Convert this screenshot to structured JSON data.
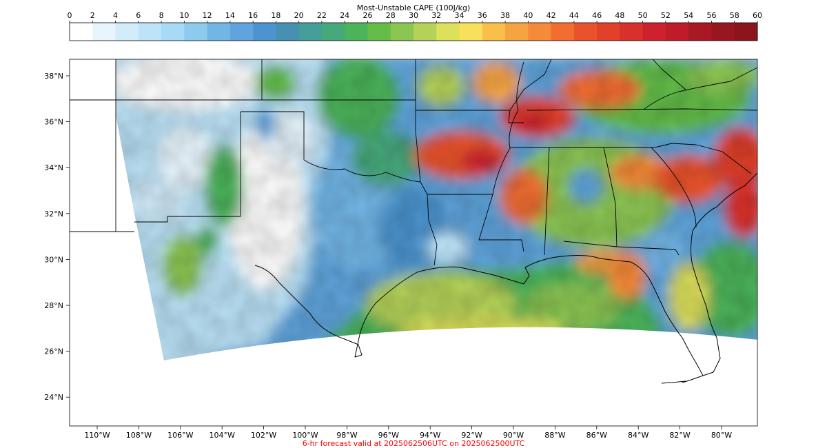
{
  "colorbar": {
    "title": "Most-Unstable CAPE (100J/kg)",
    "tick_labels": [
      "0",
      "2",
      "4",
      "6",
      "8",
      "10",
      "12",
      "14",
      "16",
      "18",
      "20",
      "22",
      "24",
      "26",
      "28",
      "30",
      "32",
      "34",
      "36",
      "38",
      "40",
      "42",
      "44",
      "46",
      "48",
      "50",
      "52",
      "54",
      "56",
      "58",
      "60"
    ],
    "colors": [
      "#ffffff",
      "#e8f5fd",
      "#d2ecfa",
      "#bce3f8",
      "#a6daf6",
      "#8ccbee",
      "#72b6e6",
      "#5fa4dc",
      "#4b94cf",
      "#4790b4",
      "#459e97",
      "#46a97b",
      "#4cb35a",
      "#63bd48",
      "#8cc652",
      "#b4d258",
      "#dde05a",
      "#f9e05a",
      "#f8c04b",
      "#f5a442",
      "#f58a38",
      "#f16d30",
      "#e9532b",
      "#e14129",
      "#d8302b",
      "#cf212d",
      "#bd1c28",
      "#a81924",
      "#98161f",
      "#8c151c"
    ]
  },
  "map": {
    "lat_labels": [
      "38°N",
      "36°N",
      "34°N",
      "32°N",
      "30°N",
      "28°N",
      "26°N",
      "24°N"
    ],
    "lon_labels": [
      "110°W",
      "108°W",
      "106°W",
      "104°W",
      "102°W",
      "100°W",
      "98°W",
      "96°W",
      "94°W",
      "92°W",
      "90°W",
      "88°W",
      "86°W",
      "84°W",
      "82°W",
      "80°W"
    ]
  },
  "footer": {
    "caption": "6-hr forecast valid at 2025062506UTC on 2025062500UTC",
    "caption_color": "#ff0000"
  }
}
